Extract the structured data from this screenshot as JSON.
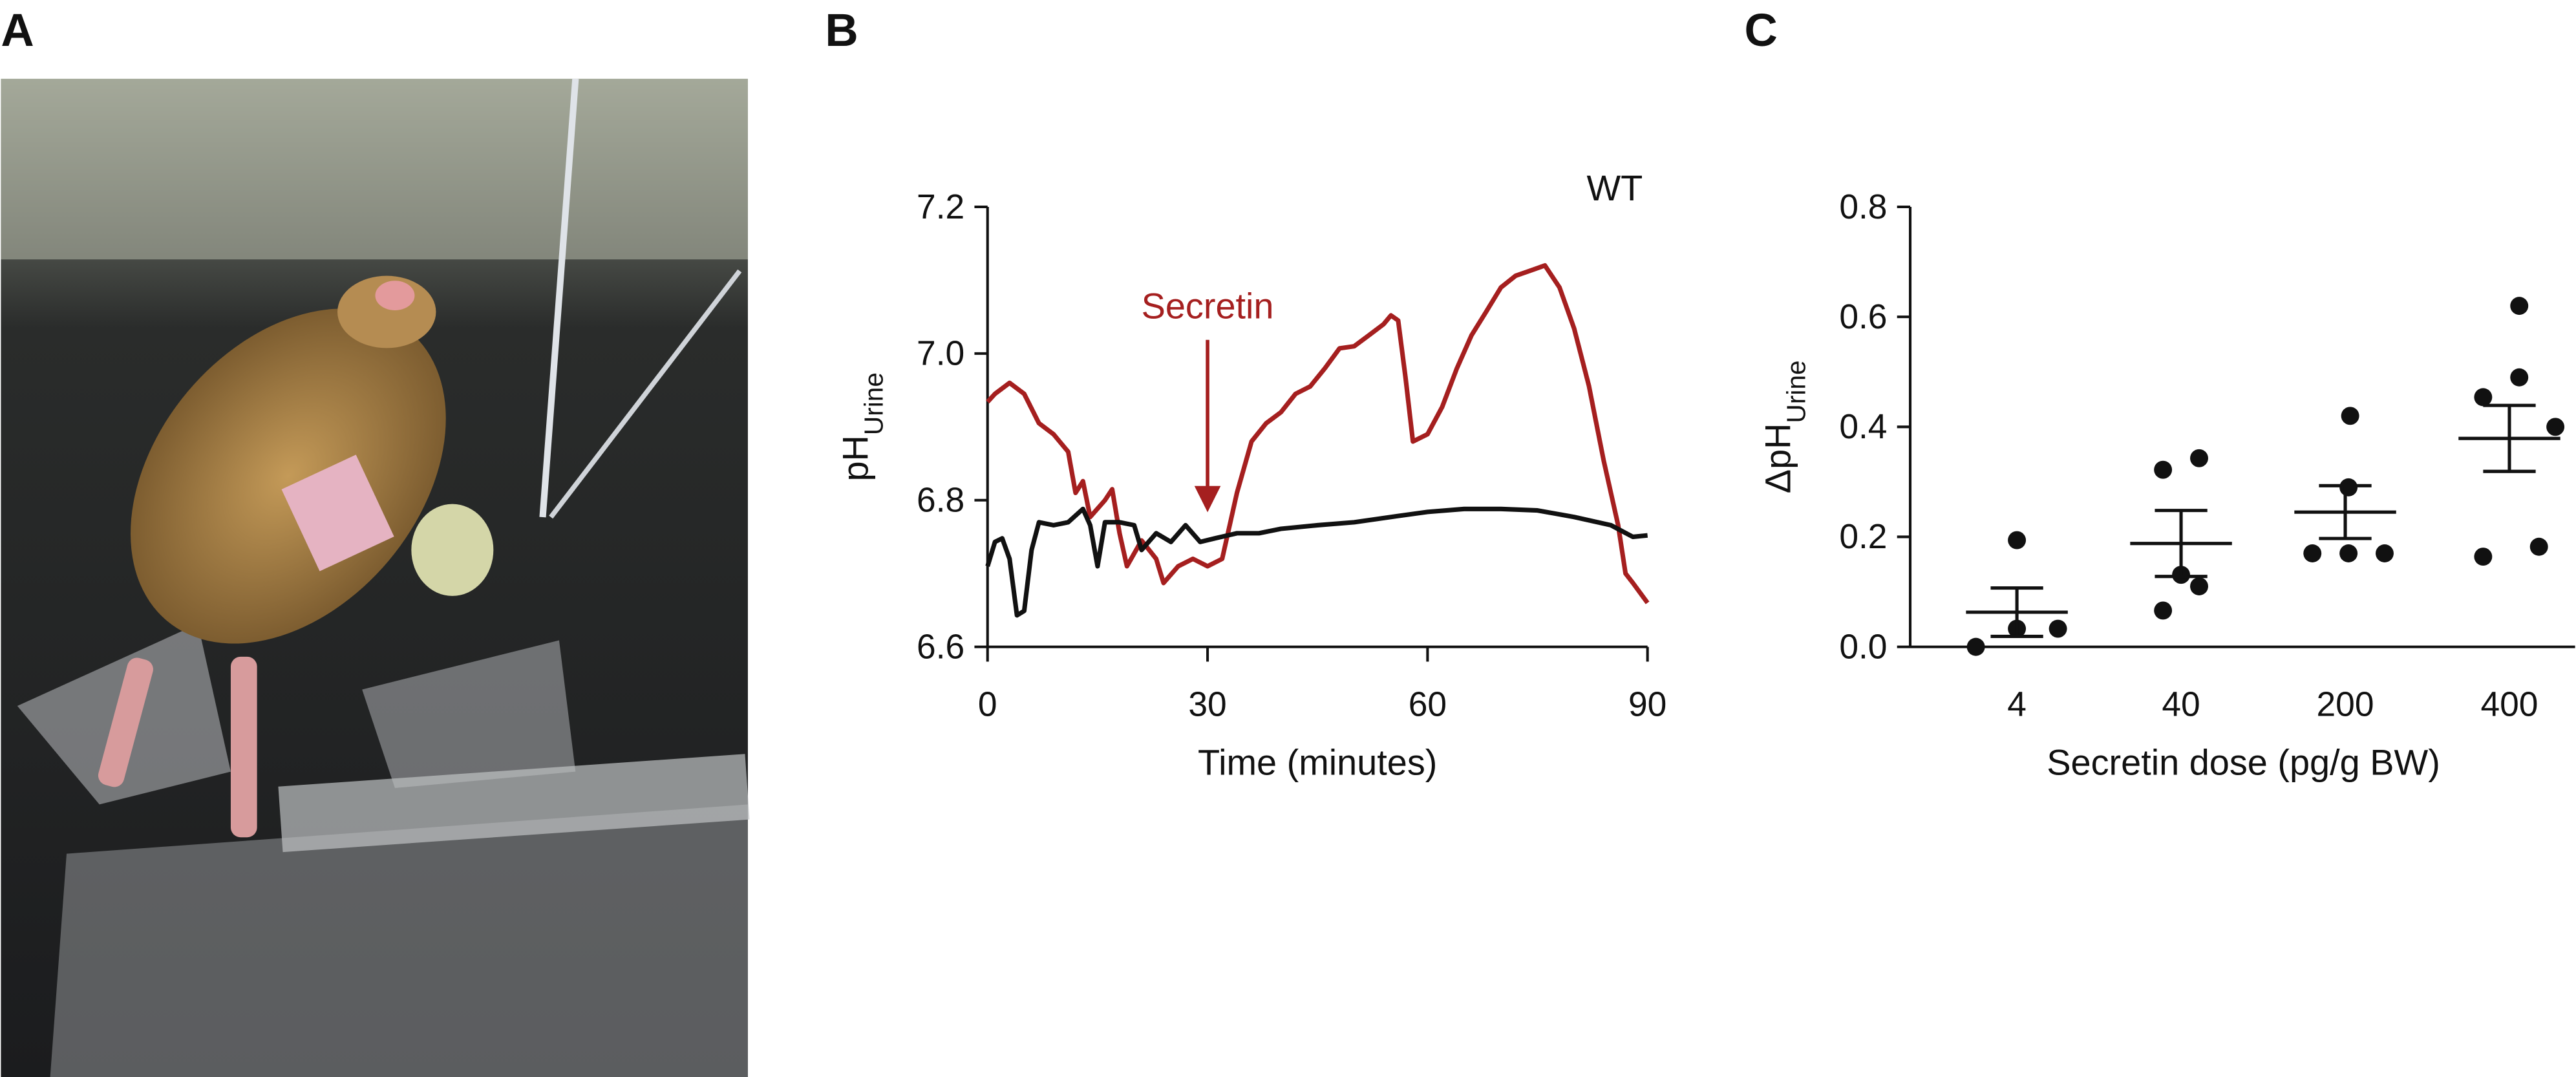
{
  "panel_labels": [
    "A",
    "B",
    "C"
  ],
  "chart_data": [
    {
      "type": "line",
      "xlabel": "Time (minutes)",
      "ylabel": "pH",
      "ylabel_sub": "Urine",
      "annotations": [
        "WT",
        "Secretin"
      ],
      "xlim": [
        0,
        90
      ],
      "xticks": [
        0,
        30,
        60,
        90
      ],
      "ylim": [
        6.6,
        7.2
      ],
      "yticks": [
        6.6,
        6.8,
        {
          "value": 7,
          "label": "7.0"
        },
        7.2
      ],
      "series": [
        {
          "color": "#a51f1f",
          "x": [
            0,
            1,
            3,
            5,
            7,
            9,
            11,
            12,
            13,
            14,
            16,
            17,
            18,
            19,
            21,
            23,
            24,
            26,
            28,
            30,
            32,
            34,
            36,
            38,
            40,
            42,
            44,
            46,
            48,
            50,
            52,
            54,
            55,
            56,
            57,
            58,
            60,
            62,
            64,
            66,
            68,
            70,
            72,
            74,
            76,
            78,
            80,
            82,
            84,
            86,
            87,
            88,
            90
          ],
          "values": [
            6.934,
            6.945,
            6.96,
            6.945,
            6.905,
            6.89,
            6.866,
            6.81,
            6.826,
            6.777,
            6.8,
            6.815,
            6.755,
            6.71,
            6.745,
            6.72,
            6.687,
            6.71,
            6.72,
            6.71,
            6.72,
            6.81,
            6.88,
            6.905,
            6.92,
            6.945,
            6.955,
            6.98,
            7.007,
            7.01,
            7.025,
            7.04,
            7.052,
            7.045,
            6.967,
            6.88,
            6.89,
            6.927,
            6.98,
            7.025,
            7.057,
            7.09,
            7.106,
            7.113,
            7.12,
            7.09,
            7.034,
            6.956,
            6.855,
            6.766,
            6.7,
            6.687,
            6.66
          ]
        },
        {
          "color": "#111111",
          "x": [
            0,
            1,
            2,
            3,
            4,
            5,
            6,
            7,
            9,
            11,
            13,
            14,
            15,
            16,
            18,
            20,
            21,
            23,
            25,
            27,
            29,
            31,
            34,
            37,
            40,
            45,
            50,
            55,
            60,
            65,
            70,
            75,
            80,
            85,
            88,
            90
          ],
          "values": [
            6.71,
            6.743,
            6.748,
            6.72,
            6.643,
            6.649,
            6.732,
            6.77,
            6.766,
            6.77,
            6.788,
            6.766,
            6.71,
            6.77,
            6.77,
            6.766,
            6.732,
            6.755,
            6.743,
            6.766,
            6.743,
            6.748,
            6.755,
            6.755,
            6.761,
            6.766,
            6.77,
            6.777,
            6.784,
            6.788,
            6.788,
            6.786,
            6.777,
            6.766,
            6.75,
            6.752
          ]
        }
      ]
    },
    {
      "type": "dotplot",
      "xlabel": "Secretin dose (pg/g BW)",
      "ylabel": "ΔpH",
      "ylabel_sub": "Urine",
      "categories": [
        "4",
        "40",
        "200",
        "400"
      ],
      "ylim": [
        0,
        0.8
      ],
      "yticks": [
        {
          "value": 0,
          "label": "0.0"
        },
        0.2,
        0.4,
        0.6,
        0.8
      ],
      "color": "#111111",
      "points": [
        [
          0.0,
          0.033,
          0.033,
          0.194
        ],
        [
          0.322,
          0.343,
          0.131,
          0.11,
          0.066
        ],
        [
          0.42,
          0.29,
          0.17,
          0.17,
          0.17
        ],
        [
          0.62,
          0.49,
          0.454,
          0.4,
          0.164,
          0.182
        ]
      ],
      "mean": [
        0.063,
        0.188,
        0.245,
        0.379
      ],
      "sem": [
        0.044,
        0.06,
        0.048,
        0.06
      ]
    }
  ]
}
